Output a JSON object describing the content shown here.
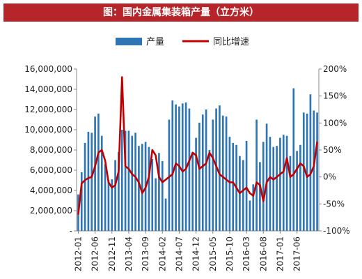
{
  "header": {
    "title": "图：国内金属集装箱产量（立方米）"
  },
  "chart_data": {
    "type": "bar+line",
    "legend": [
      "产量",
      "同比增速"
    ],
    "legend_position": "top",
    "colors": {
      "bar": "#2e75b6",
      "line": "#c00000"
    },
    "ylim_left": [
      0,
      16000000
    ],
    "ylim_right": [
      -100,
      200
    ],
    "y_left_ticks": [
      "-",
      "2,000,000",
      "4,000,000",
      "6,000,000",
      "8,000,000",
      "10,000,000",
      "12,000,000",
      "14,000,000",
      "16,000,000"
    ],
    "y_right_ticks": [
      "-100%",
      "-50%",
      "0%",
      "50%",
      "100%",
      "150%",
      "200%"
    ],
    "x_tick_labels": [
      "2012-01",
      "2012-06",
      "2012-11",
      "2013-04",
      "2013-09",
      "2014-02",
      "2014-07",
      "2014-12",
      "2015-05",
      "2015-10",
      "2016-03",
      "2016-08",
      "2017-01",
      "2017-06"
    ],
    "x_tick_every": 5,
    "series": [
      {
        "name": "产量",
        "type": "bar",
        "values": [
          3600000,
          5800000,
          8700000,
          9800000,
          9700000,
          11300000,
          11600000,
          9400000,
          6600000,
          5000000,
          5100000,
          7000000,
          7800000,
          10000000,
          9900000,
          9900000,
          9400000,
          9700000,
          8400000,
          8600000,
          8800000,
          8300000,
          7100000,
          5200000,
          7700000,
          6900000,
          3200000,
          11000000,
          12900000,
          12500000,
          12300000,
          12600000,
          12700000,
          12100000,
          7800000,
          9200000,
          10700000,
          11500000,
          12000000,
          8000000,
          11000000,
          12100000,
          12400000,
          11400000,
          11300000,
          9300000,
          8700000,
          8500000,
          7400000,
          7000000,
          8900000,
          3000000,
          4600000,
          11000000,
          6800000,
          8800000,
          10600000,
          9300000,
          8300000,
          8400000,
          9200000,
          9500000,
          9400000,
          7400000,
          14100000,
          7900000,
          8500000,
          11700000,
          11600000,
          13500000,
          11900000,
          11700000
        ],
        "yaxis": "left"
      },
      {
        "name": "同比增速",
        "type": "line",
        "values": [
          -70,
          -12,
          -6,
          -2,
          0,
          20,
          45,
          50,
          30,
          -10,
          -20,
          -15,
          10,
          185,
          20,
          15,
          5,
          0,
          -10,
          -30,
          -20,
          0,
          50,
          40,
          0,
          -10,
          -5,
          0,
          5,
          25,
          20,
          10,
          15,
          30,
          45,
          40,
          15,
          20,
          25,
          45,
          35,
          20,
          5,
          0,
          -5,
          -10,
          -10,
          -20,
          -30,
          -25,
          -20,
          -30,
          -35,
          -10,
          -15,
          -45,
          -10,
          0,
          -5,
          0,
          5,
          10,
          35,
          0,
          5,
          15,
          25,
          20,
          0,
          5,
          20,
          65
        ],
        "yaxis": "right"
      }
    ]
  }
}
